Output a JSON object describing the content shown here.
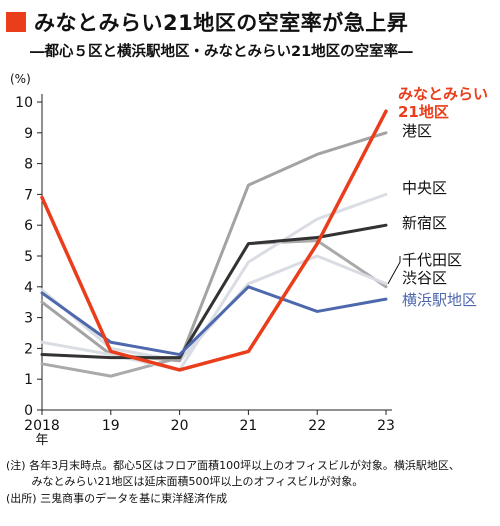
{
  "header": {
    "title": "みなとみらい21地区の空室率が急上昇",
    "subtitle": "―都心５区と横浜駅地区・みなとみらい21地区の空室率―",
    "accent_color": "#ea3d1b"
  },
  "chart_data": {
    "type": "line",
    "unit_label": "(%)",
    "categories": [
      "2018",
      "19",
      "20",
      "21",
      "22",
      "23"
    ],
    "x_first_suffix": "年",
    "ylim": [
      0,
      10
    ],
    "yticks": [
      0,
      1,
      2,
      3,
      4,
      5,
      6,
      7,
      8,
      9,
      10
    ],
    "grid": false,
    "series": [
      {
        "name": "",
        "color": "#aaaaaa",
        "values": [
          1.5,
          1.1,
          1.7,
          5.4,
          5.5,
          4.0
        ]
      },
      {
        "name": "",
        "color": "#d9dce2",
        "values": [
          3.9,
          2.0,
          1.6,
          4.1,
          5.0,
          4.1
        ]
      },
      {
        "name": "港区",
        "color": "#a3a3a3",
        "values": [
          3.5,
          1.8,
          1.6,
          7.3,
          8.3,
          9.0
        ]
      },
      {
        "name": "中央区",
        "color": "#dadde3",
        "values": [
          2.2,
          1.8,
          1.3,
          4.8,
          6.2,
          7.0
        ]
      },
      {
        "name": "新宿区",
        "color": "#333333",
        "values": [
          1.8,
          1.7,
          1.7,
          5.4,
          5.6,
          6.0
        ]
      },
      {
        "name": "横浜駅地区",
        "color": "#4e68ae",
        "values": [
          3.8,
          2.2,
          1.8,
          4.0,
          3.2,
          3.6
        ]
      },
      {
        "name": "みなとみらい21地区",
        "color": "#ea3d1b",
        "values": [
          6.9,
          1.9,
          1.3,
          1.9,
          5.4,
          9.7
        ]
      }
    ],
    "labels": [
      {
        "lines": [
          "みなとみらい",
          "21地区"
        ],
        "color": "#ea3d1b",
        "weight": "bold"
      },
      {
        "lines": [
          "港区"
        ],
        "color": "#111111",
        "weight": "normal"
      },
      {
        "lines": [
          "中央区"
        ],
        "color": "#111111",
        "weight": "normal"
      },
      {
        "lines": [
          "新宿区"
        ],
        "color": "#111111",
        "weight": "normal"
      },
      {
        "lines": [
          "千代田区",
          "渋谷区"
        ],
        "color": "#111111",
        "weight": "normal"
      },
      {
        "lines": [
          "横浜駅地区"
        ],
        "color": "#4e68ae",
        "weight": "normal"
      }
    ]
  },
  "notes": {
    "line1": "(注) 各年3月末時点。都心5区はフロア面積100坪以上のオフィスビルが対象。横浜駅地区、",
    "line2": "　　 みなとみらい21地区は延床面積500坪以上のオフィスビルが対象。",
    "line3": "(出所) 三鬼商事のデータを基に東洋経済作成"
  }
}
